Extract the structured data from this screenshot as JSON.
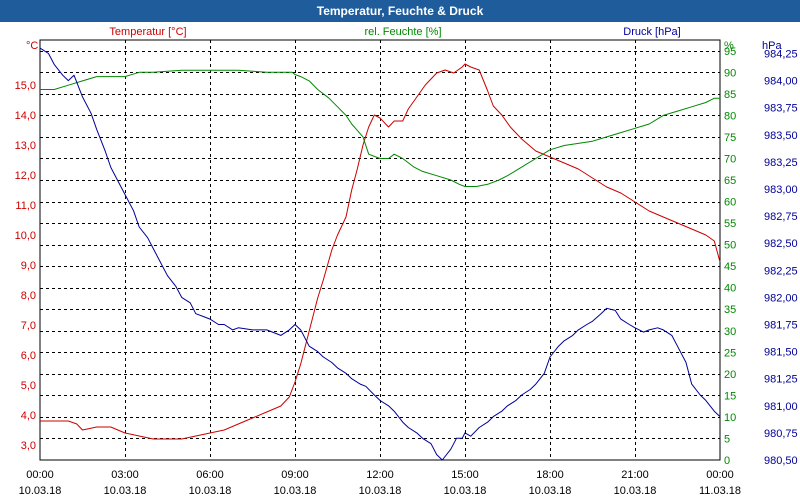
{
  "window": {
    "title": "Temperatur, Feuchte & Druck"
  },
  "chart_data": {
    "type": "line",
    "title": "Temperatur, Feuchte & Druck",
    "x_tick_labels": [
      {
        "time": "00:00",
        "date": "10.03.18"
      },
      {
        "time": "03:00",
        "date": "10.03.18"
      },
      {
        "time": "06:00",
        "date": "10.03.18"
      },
      {
        "time": "09:00",
        "date": "10.03.18"
      },
      {
        "time": "12:00",
        "date": "10.03.18"
      },
      {
        "time": "15:00",
        "date": "10.03.18"
      },
      {
        "time": "18:00",
        "date": "10.03.18"
      },
      {
        "time": "21:00",
        "date": "10.03.18"
      },
      {
        "time": "00:00",
        "date": "11.03.18"
      }
    ],
    "xlim": [
      0,
      24
    ],
    "axes": {
      "temperature": {
        "unit": "°C",
        "header": "Temperatur [°C]",
        "color": "#cc0000",
        "ylim": [
          2.5,
          16.5
        ],
        "tick_values": [
          3,
          4,
          5,
          6,
          7,
          8,
          9,
          10,
          11,
          12,
          13,
          14,
          15
        ],
        "tick_labels": [
          "3,0",
          "4,0",
          "5,0",
          "6,0",
          "7,0",
          "8,0",
          "9,0",
          "10,0",
          "11,0",
          "12,0",
          "13,0",
          "14,0",
          "15,0"
        ]
      },
      "humidity": {
        "unit": "%",
        "header": "rel. Feuchte [%]",
        "color": "#008800",
        "ylim": [
          0,
          97.5
        ],
        "tick_values": [
          0,
          5,
          10,
          15,
          20,
          25,
          30,
          35,
          40,
          45,
          50,
          55,
          60,
          65,
          70,
          75,
          80,
          85,
          90,
          95
        ],
        "tick_labels": [
          "0",
          "5",
          "10",
          "15",
          "20",
          "25",
          "30",
          "35",
          "40",
          "45",
          "50",
          "55",
          "60",
          "65",
          "70",
          "75",
          "80",
          "85",
          "90",
          "95"
        ]
      },
      "pressure": {
        "unit": "hPa",
        "header": "Druck [hPa]",
        "color": "#000099",
        "ylim": [
          980.5,
          984.375
        ],
        "tick_values": [
          980.5,
          980.75,
          981.0,
          981.25,
          981.5,
          981.75,
          982.0,
          982.25,
          982.5,
          982.75,
          983.0,
          983.25,
          983.5,
          983.75,
          984.0,
          984.25
        ],
        "tick_labels": [
          "980,50",
          "980,75",
          "981,00",
          "981,25",
          "981,50",
          "981,75",
          "982,00",
          "982,25",
          "982,50",
          "982,75",
          "983,00",
          "983,25",
          "983,50",
          "983,75",
          "984,00",
          "984,25"
        ]
      }
    },
    "grid": true,
    "series": [
      {
        "name": "Temperatur",
        "axis": "temperature",
        "color": "#cc0000",
        "x": [
          0,
          0.5,
          1.0,
          1.3,
          1.5,
          2.0,
          2.5,
          3.0,
          3.5,
          4.0,
          4.5,
          5.0,
          5.5,
          6.0,
          6.5,
          7.0,
          7.5,
          8.0,
          8.5,
          8.8,
          9.0,
          9.2,
          9.5,
          9.8,
          10.0,
          10.3,
          10.5,
          10.8,
          11.0,
          11.2,
          11.4,
          11.6,
          11.8,
          12.0,
          12.3,
          12.5,
          12.8,
          13.0,
          13.3,
          13.6,
          14.0,
          14.3,
          14.6,
          14.9,
          15.0,
          15.2,
          15.5,
          15.8,
          16.0,
          16.3,
          16.6,
          17.0,
          17.5,
          18.0,
          18.5,
          19.0,
          19.5,
          20.0,
          20.5,
          21.0,
          21.5,
          22.0,
          22.5,
          23.0,
          23.5,
          23.8,
          24.0
        ],
        "y": [
          3.8,
          3.8,
          3.8,
          3.7,
          3.5,
          3.6,
          3.6,
          3.4,
          3.3,
          3.2,
          3.2,
          3.2,
          3.3,
          3.4,
          3.5,
          3.7,
          3.9,
          4.1,
          4.3,
          4.6,
          5.1,
          5.7,
          6.8,
          7.9,
          8.5,
          9.5,
          10.0,
          10.6,
          11.5,
          12.2,
          13.0,
          13.6,
          14.0,
          13.9,
          13.6,
          13.8,
          13.8,
          14.2,
          14.6,
          15.0,
          15.4,
          15.5,
          15.4,
          15.6,
          15.7,
          15.6,
          15.5,
          14.8,
          14.3,
          14.0,
          13.6,
          13.2,
          12.8,
          12.6,
          12.4,
          12.2,
          11.9,
          11.6,
          11.4,
          11.1,
          10.8,
          10.6,
          10.4,
          10.2,
          10.0,
          9.8,
          9.1
        ]
      },
      {
        "name": "rel. Feuchte",
        "axis": "humidity",
        "color": "#008800",
        "x": [
          0,
          0.5,
          1.0,
          1.5,
          2.0,
          2.5,
          3.0,
          3.5,
          4.0,
          5.0,
          6.0,
          7.0,
          8.0,
          8.5,
          8.9,
          9.0,
          9.2,
          9.5,
          9.8,
          10.2,
          10.5,
          10.8,
          11.0,
          11.4,
          11.6,
          12.0,
          12.3,
          12.5,
          12.8,
          13.2,
          13.5,
          14.0,
          14.5,
          14.8,
          15.0,
          15.4,
          15.8,
          16.2,
          16.5,
          17.0,
          17.5,
          18.0,
          18.5,
          19.0,
          19.5,
          20.0,
          20.5,
          21.0,
          21.5,
          22.0,
          22.5,
          23.0,
          23.5,
          23.8,
          24.0
        ],
        "y": [
          86,
          86,
          87,
          88,
          89,
          89,
          89,
          90,
          90,
          90.5,
          90.5,
          90.5,
          90,
          90,
          90,
          89.5,
          89,
          88,
          86,
          84,
          82,
          80,
          78,
          75,
          71,
          70,
          70,
          71,
          70,
          68,
          67,
          66,
          65,
          64,
          63.5,
          63.5,
          64,
          65,
          66,
          68,
          70,
          72,
          73,
          73.5,
          74,
          75,
          76,
          77,
          78,
          80,
          81,
          82,
          83,
          84,
          84
        ]
      },
      {
        "name": "Druck",
        "axis": "pressure",
        "color": "#000099",
        "x": [
          0,
          0.3,
          0.5,
          0.8,
          1.0,
          1.2,
          1.5,
          1.8,
          2.0,
          2.3,
          2.5,
          2.8,
          3.0,
          3.3,
          3.5,
          3.8,
          4.0,
          4.3,
          4.5,
          4.8,
          5.0,
          5.3,
          5.5,
          5.8,
          6.0,
          6.3,
          6.5,
          6.8,
          7.0,
          7.5,
          8.0,
          8.5,
          8.8,
          9.0,
          9.2,
          9.5,
          9.8,
          10.0,
          10.3,
          10.5,
          10.8,
          11.0,
          11.3,
          11.5,
          11.8,
          12.0,
          12.3,
          12.5,
          12.8,
          13.0,
          13.3,
          13.5,
          13.8,
          14.0,
          14.2,
          14.5,
          14.7,
          14.9,
          15.0,
          15.2,
          15.5,
          15.8,
          16.0,
          16.3,
          16.5,
          16.8,
          17.0,
          17.3,
          17.5,
          17.8,
          18.0,
          18.3,
          18.5,
          18.8,
          19.0,
          19.3,
          19.5,
          19.8,
          20.0,
          20.3,
          20.5,
          20.8,
          21.0,
          21.3,
          21.5,
          21.8,
          22.0,
          22.3,
          22.5,
          22.8,
          23.0,
          23.3,
          23.5,
          23.8,
          24.0
        ],
        "y": [
          984.3,
          984.25,
          984.15,
          984.05,
          984.0,
          984.05,
          983.85,
          983.7,
          983.55,
          983.35,
          983.2,
          983.05,
          982.95,
          982.8,
          982.65,
          982.55,
          982.45,
          982.3,
          982.2,
          982.1,
          982.0,
          981.95,
          981.85,
          981.82,
          981.8,
          981.75,
          981.75,
          981.7,
          981.72,
          981.7,
          981.7,
          981.65,
          981.7,
          981.75,
          981.7,
          981.55,
          981.5,
          981.45,
          981.4,
          981.35,
          981.3,
          981.25,
          981.2,
          981.18,
          981.1,
          981.05,
          981.0,
          980.95,
          980.85,
          980.8,
          980.75,
          980.7,
          980.65,
          980.55,
          980.5,
          980.6,
          980.7,
          980.7,
          980.75,
          980.72,
          980.8,
          980.85,
          980.9,
          980.95,
          981.0,
          981.05,
          981.1,
          981.15,
          981.2,
          981.3,
          981.45,
          981.55,
          981.6,
          981.65,
          981.7,
          981.75,
          981.78,
          981.85,
          981.9,
          981.88,
          981.8,
          981.75,
          981.72,
          981.68,
          981.7,
          981.72,
          981.7,
          981.65,
          981.55,
          981.4,
          981.2,
          981.1,
          981.05,
          980.95,
          980.9
        ]
      }
    ]
  }
}
